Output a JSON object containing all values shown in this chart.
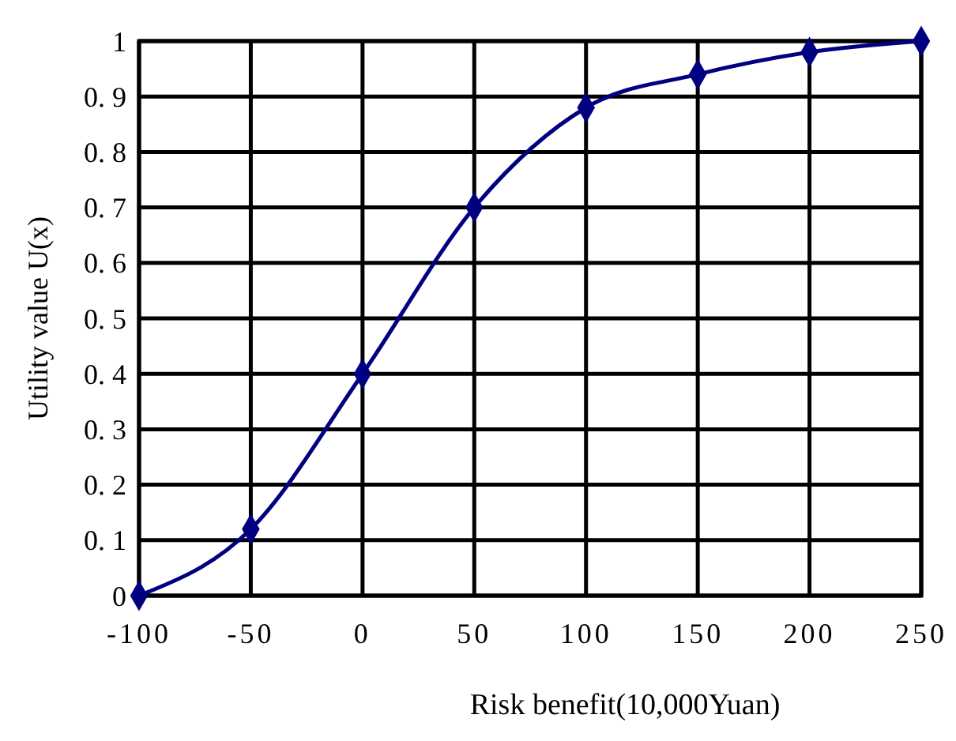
{
  "chart_data": {
    "type": "line",
    "xlabel": "Risk benefit(10,000Yuan)",
    "ylabel": "Utility value U(x)",
    "x": [
      -100,
      -50,
      0,
      50,
      100,
      150,
      200,
      250
    ],
    "series": [
      {
        "color": "#000080",
        "values": [
          0,
          0.12,
          0.4,
          0.7,
          0.88,
          0.94,
          0.98,
          1
        ]
      }
    ],
    "xlim": [
      -100,
      250
    ],
    "xticks": [
      -100,
      -50,
      0,
      50,
      100,
      150,
      200,
      250
    ],
    "ylim": [
      0,
      1
    ],
    "yticks": [
      0,
      {
        "value": 0.1,
        "label": "0. 1"
      },
      {
        "value": 0.2,
        "label": "0. 2"
      },
      {
        "value": 0.3,
        "label": "0. 3"
      },
      {
        "value": 0.4,
        "label": "0. 4"
      },
      {
        "value": 0.5,
        "label": "0. 5"
      },
      {
        "value": 0.6,
        "label": "0. 6"
      },
      {
        "value": 0.7,
        "label": "0. 7"
      },
      {
        "value": 0.8,
        "label": "0. 8"
      },
      {
        "value": 0.9,
        "label": "0. 9"
      },
      1
    ],
    "grid": true,
    "marker": "diamond",
    "line_style": "solid"
  }
}
